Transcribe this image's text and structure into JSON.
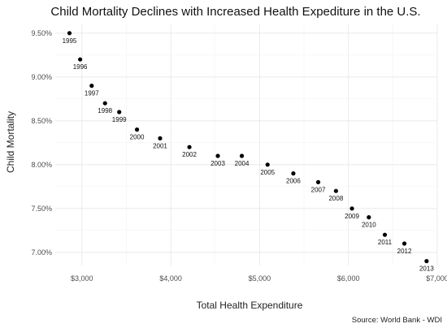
{
  "chart_data": {
    "type": "scatter",
    "title": "Child Mortality Declines with Increased Health Expediture in the U.S.",
    "xlabel": "Total Health Expenditure",
    "ylabel": "Child Mortality",
    "caption": "Source: World Bank - WDI",
    "xlim": [
      2700,
      7000
    ],
    "ylim": [
      6.85,
      9.6
    ],
    "x_ticks": [
      3000,
      4000,
      5000,
      6000,
      7000
    ],
    "x_tick_labels": [
      "$3,000",
      "$4,000",
      "$5,000",
      "$6,000",
      "$7,000"
    ],
    "y_ticks": [
      7.0,
      7.5,
      8.0,
      8.5,
      9.0,
      9.5
    ],
    "y_tick_labels": [
      "7.00%",
      "7.50%",
      "8.00%",
      "8.50%",
      "9.00%",
      "9.50%"
    ],
    "grid": true,
    "legend": "none",
    "marker_color": "#000000",
    "points": [
      {
        "label": "1995",
        "x": 2860,
        "y": 9.5
      },
      {
        "label": "1996",
        "x": 2980,
        "y": 9.2
      },
      {
        "label": "1997",
        "x": 3110,
        "y": 8.9
      },
      {
        "label": "1998",
        "x": 3260,
        "y": 8.7
      },
      {
        "label": "1999",
        "x": 3420,
        "y": 8.6
      },
      {
        "label": "2000",
        "x": 3620,
        "y": 8.4
      },
      {
        "label": "2001",
        "x": 3880,
        "y": 8.3
      },
      {
        "label": "2002",
        "x": 4210,
        "y": 8.2
      },
      {
        "label": "2003",
        "x": 4530,
        "y": 8.1
      },
      {
        "label": "2004",
        "x": 4800,
        "y": 8.1
      },
      {
        "label": "2005",
        "x": 5090,
        "y": 8.0
      },
      {
        "label": "2006",
        "x": 5380,
        "y": 7.9
      },
      {
        "label": "2007",
        "x": 5660,
        "y": 7.8
      },
      {
        "label": "2008",
        "x": 5860,
        "y": 7.7
      },
      {
        "label": "2009",
        "x": 6040,
        "y": 7.5
      },
      {
        "label": "2010",
        "x": 6230,
        "y": 7.4
      },
      {
        "label": "2011",
        "x": 6410,
        "y": 7.2
      },
      {
        "label": "2012",
        "x": 6630,
        "y": 7.1
      },
      {
        "label": "2013",
        "x": 6880,
        "y": 6.9
      }
    ]
  }
}
